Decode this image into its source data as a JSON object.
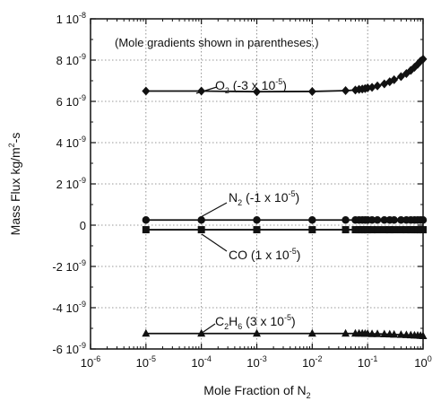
{
  "chart_data": {
    "type": "scatter",
    "xscale": "log",
    "xlim": [
      1e-06,
      1
    ],
    "ylim": [
      -6e-09,
      1e-08
    ],
    "xlabel": "Mole Fraction of N2",
    "ylabel": "Mass Flux kg/m2-s",
    "note": "(Mole gradients shown in parentheses.)",
    "grid": true,
    "xticks": [
      {
        "base": "10",
        "exp": "-6"
      },
      {
        "base": "10",
        "exp": "-5"
      },
      {
        "base": "10",
        "exp": "-4"
      },
      {
        "base": "10",
        "exp": "-3"
      },
      {
        "base": "10",
        "exp": "-2"
      },
      {
        "base": "10",
        "exp": "-1"
      },
      {
        "base": "10",
        "exp": "0"
      }
    ],
    "yticks": [
      {
        "mant": "-6 10",
        "exp": "-9"
      },
      {
        "mant": "-4 10",
        "exp": "-9"
      },
      {
        "mant": "-2 10",
        "exp": "-9"
      },
      {
        "mant": "0",
        "exp": ""
      },
      {
        "mant": "2 10",
        "exp": "-9"
      },
      {
        "mant": "4 10",
        "exp": "-9"
      },
      {
        "mant": "6 10",
        "exp": "-9"
      },
      {
        "mant": "8 10",
        "exp": "-9"
      },
      {
        "mant": "1 10",
        "exp": "-8"
      }
    ],
    "x": [
      1e-05,
      0.0001,
      0.001,
      0.01,
      0.04,
      0.06,
      0.07,
      0.08,
      0.09,
      0.1,
      0.12,
      0.15,
      0.2,
      0.25,
      0.3,
      0.4,
      0.5,
      0.6,
      0.7,
      0.8,
      0.9,
      1.0
    ],
    "series": [
      {
        "name": "O2",
        "marker": "diamond",
        "label": {
          "pre": "O",
          "sub": "2",
          "mid": " (-3 x 10",
          "sup": "-5",
          "post": ")"
        },
        "values": [
          6.5e-09,
          6.5e-09,
          6.47e-09,
          6.48e-09,
          6.52e-09,
          6.55e-09,
          6.58e-09,
          6.6e-09,
          6.62e-09,
          6.65e-09,
          6.68e-09,
          6.75e-09,
          6.85e-09,
          6.95e-09,
          7.05e-09,
          7.2e-09,
          7.35e-09,
          7.5e-09,
          7.65e-09,
          7.8e-09,
          7.95e-09,
          8.05e-09
        ]
      },
      {
        "name": "N2",
        "marker": "circle",
        "label": {
          "pre": "N",
          "sub": "2",
          "mid": " (-1 x 10",
          "sup": "-5",
          "post": ")"
        },
        "values": [
          2.5e-10,
          2.5e-10,
          2.5e-10,
          2.5e-10,
          2.5e-10,
          2.5e-10,
          2.5e-10,
          2.5e-10,
          2.5e-10,
          2.5e-10,
          2.5e-10,
          2.5e-10,
          2.5e-10,
          2.5e-10,
          2.5e-10,
          2.5e-10,
          2.5e-10,
          2.5e-10,
          2.5e-10,
          2.5e-10,
          2.5e-10,
          2.5e-10
        ]
      },
      {
        "name": "CO",
        "marker": "square",
        "label": {
          "pre": "CO",
          "sub": "",
          "mid": " (1 x 10",
          "sup": "-5",
          "post": ")"
        },
        "values": [
          -2.2e-10,
          -2.2e-10,
          -2.2e-10,
          -2.2e-10,
          -2.2e-10,
          -2.2e-10,
          -2.2e-10,
          -2.2e-10,
          -2.2e-10,
          -2.2e-10,
          -2.2e-10,
          -2.2e-10,
          -2.2e-10,
          -2.2e-10,
          -2.2e-10,
          -2.2e-10,
          -2.2e-10,
          -2.2e-10,
          -2.2e-10,
          -2.2e-10,
          -2.2e-10,
          -2.2e-10
        ]
      },
      {
        "name": "C2H6",
        "marker": "triangle",
        "label": {
          "pre": "C",
          "sub": "2",
          "pre2": "H",
          "sub2": "6",
          "mid": " (3 x 10",
          "sup": "-5",
          "post": ")"
        },
        "values": [
          -5.25e-09,
          -5.25e-09,
          -5.25e-09,
          -5.25e-09,
          -5.25e-09,
          -5.25e-09,
          -5.25e-09,
          -5.25e-09,
          -5.26e-09,
          -5.26e-09,
          -5.27e-09,
          -5.27e-09,
          -5.28e-09,
          -5.29e-09,
          -5.3e-09,
          -5.31e-09,
          -5.32e-09,
          -5.33e-09,
          -5.34e-09,
          -5.35e-09,
          -5.36e-09,
          -5.37e-09
        ]
      }
    ]
  }
}
